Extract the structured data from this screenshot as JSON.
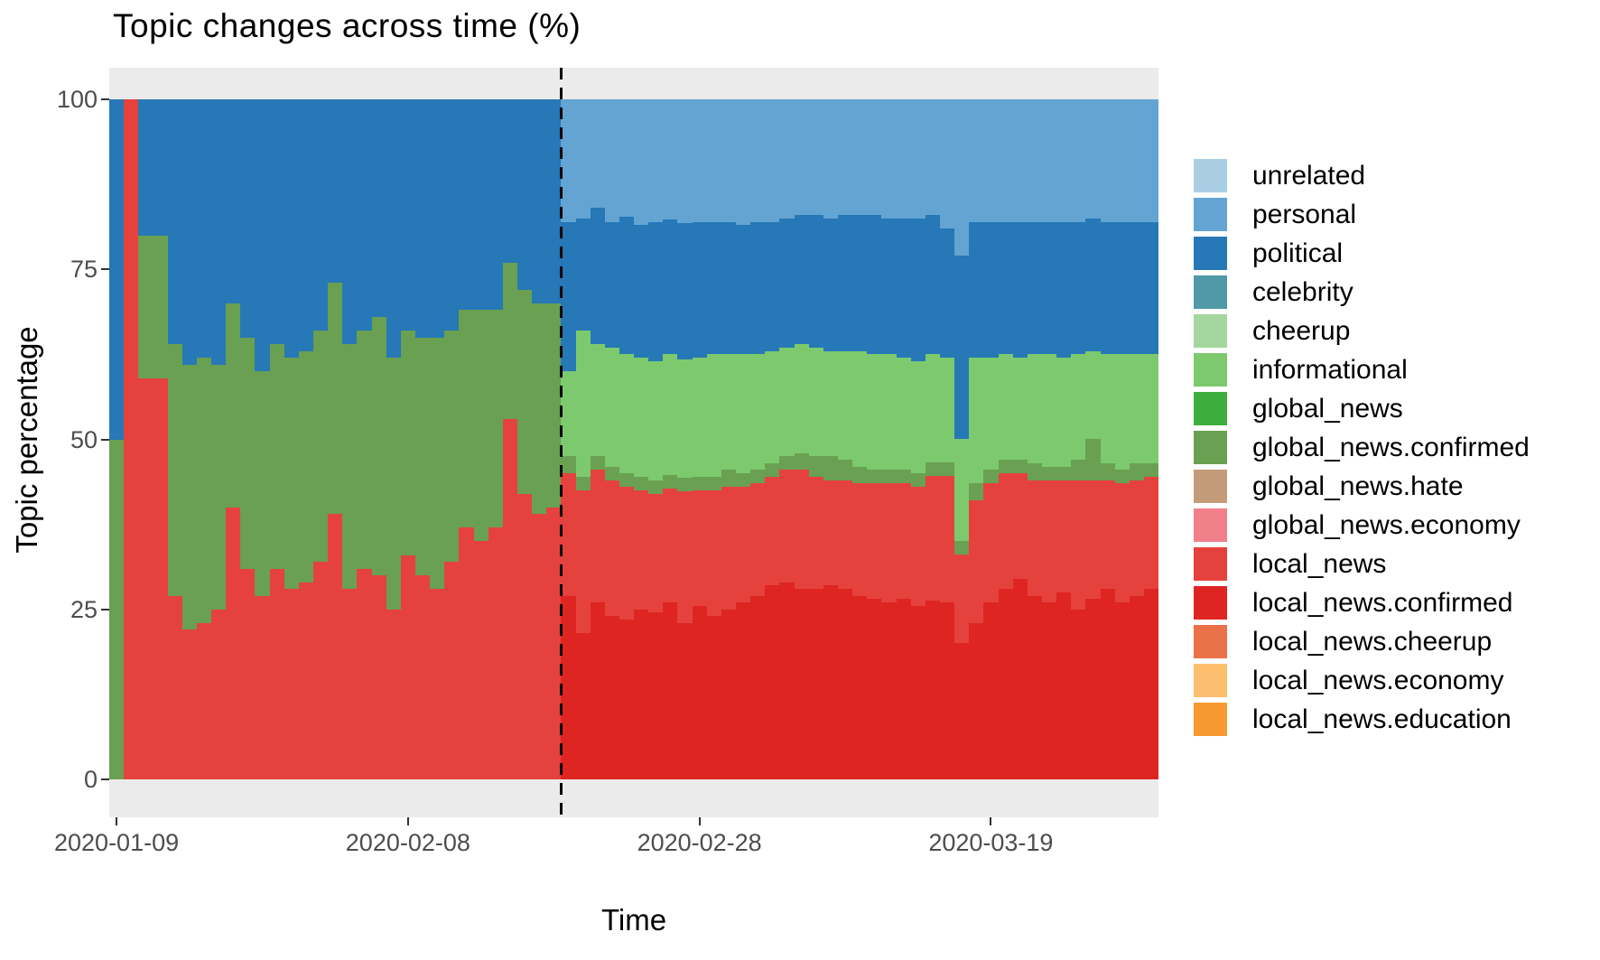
{
  "chart": {
    "title": "Topic changes across time (%)",
    "x_axis_title": "Time",
    "y_axis_title": "Topic percentage",
    "panel_bg": "#EBEBEB",
    "axis_text_color": "#4D4D4D"
  },
  "legend": {
    "items": [
      {
        "name": "unrelated",
        "color": "#A9CEE4"
      },
      {
        "name": "personal",
        "color": "#63A4D2"
      },
      {
        "name": "political",
        "color": "#2678B6"
      },
      {
        "name": "celebrity",
        "color": "#509AA8"
      },
      {
        "name": "cheerup",
        "color": "#A4D79E"
      },
      {
        "name": "informational",
        "color": "#7DCA6E"
      },
      {
        "name": "global_news",
        "color": "#3DAE3D"
      },
      {
        "name": "global_news.confirmed",
        "color": "#69A052"
      },
      {
        "name": "global_news.hate",
        "color": "#C49B78"
      },
      {
        "name": "global_news.economy",
        "color": "#F1808A"
      },
      {
        "name": "local_news",
        "color": "#E5423D"
      },
      {
        "name": "local_news.confirmed",
        "color": "#DE2522"
      },
      {
        "name": "local_news.cheerup",
        "color": "#EB7148"
      },
      {
        "name": "local_news.economy",
        "color": "#FDBE6E"
      },
      {
        "name": "local_news.education",
        "color": "#F8992F"
      }
    ]
  },
  "chart_data": {
    "type": "bar",
    "stacked": true,
    "unit": "percent of topics per day",
    "ylim": [
      0,
      100
    ],
    "y_ticks": [
      0,
      25,
      50,
      75,
      100
    ],
    "n_bars": 72,
    "x_ticks": [
      {
        "label": "2020-01-09",
        "bar_index": 0
      },
      {
        "label": "2020-02-08",
        "bar_index": 20
      },
      {
        "label": "2020-02-28",
        "bar_index": 40
      },
      {
        "label": "2020-03-19",
        "bar_index": 60
      }
    ],
    "vline_after_bar_index": 30,
    "grid": false,
    "legend_position": "right",
    "series": [
      {
        "name": "local_news.confirmed",
        "color": "#DE2522",
        "values": [
          0,
          0,
          0,
          0,
          0,
          0,
          0,
          0,
          0,
          0,
          0,
          0,
          0,
          0,
          0,
          0,
          0,
          0,
          0,
          0,
          0,
          0,
          0,
          0,
          0,
          0,
          0,
          0,
          0,
          0,
          0,
          27,
          21.5,
          26,
          24,
          23.5,
          25,
          24.5,
          26,
          23,
          25.5,
          24,
          25,
          26,
          27,
          28.5,
          29,
          28,
          28,
          28.5,
          28,
          27,
          26.5,
          26,
          26.5,
          25.5,
          26.3,
          26,
          20,
          23,
          26,
          28,
          29.5,
          27,
          26,
          27.5,
          25,
          26.5,
          28,
          26,
          27,
          28
        ]
      },
      {
        "name": "local_news",
        "color": "#E5423D",
        "values": [
          0,
          100,
          59,
          59,
          27,
          22,
          23,
          25,
          40,
          31,
          27,
          31,
          28,
          29,
          32,
          39,
          28,
          31,
          30,
          25,
          33,
          30,
          28,
          32,
          37,
          35,
          37,
          53,
          42,
          39,
          40,
          18,
          21,
          19.5,
          20,
          19.5,
          17.5,
          17.5,
          16.8,
          19.3,
          17,
          18.5,
          18,
          17,
          16.5,
          16,
          16.5,
          17.5,
          16.5,
          15.5,
          16,
          16.5,
          17,
          17.5,
          17,
          17.5,
          18.3,
          18.6,
          13,
          18,
          17.5,
          17,
          15.5,
          17,
          18,
          16.5,
          19,
          17.5,
          16,
          17.5,
          17,
          16.5
        ]
      },
      {
        "name": "global_news.confirmed",
        "color": "#69A052",
        "values": [
          50,
          0,
          21,
          21,
          37,
          39,
          39,
          36,
          30,
          34,
          33,
          33,
          34,
          34,
          34,
          34,
          36,
          35,
          38,
          37,
          33,
          35,
          37,
          34,
          32,
          34,
          32,
          23,
          30,
          31,
          30,
          2.5,
          2,
          2,
          2,
          2,
          2,
          2,
          2,
          2,
          2,
          2,
          2.5,
          2,
          2,
          2,
          2,
          2.5,
          3,
          3.5,
          3,
          2.5,
          2,
          2,
          2,
          2,
          2,
          2,
          2,
          2.5,
          2,
          2,
          2,
          2.5,
          2,
          2,
          3,
          6,
          2.5,
          2,
          2.5,
          2
        ]
      },
      {
        "name": "informational",
        "color": "#7DCA6E",
        "values": [
          0,
          0,
          0,
          0,
          0,
          0,
          0,
          0,
          0,
          0,
          0,
          0,
          0,
          0,
          0,
          0,
          0,
          0,
          0,
          0,
          0,
          0,
          0,
          0,
          0,
          0,
          0,
          0,
          0,
          0,
          0,
          12.5,
          21.5,
          16.5,
          17.5,
          17.5,
          17.5,
          17.5,
          17.7,
          17.5,
          17.5,
          18,
          17,
          17.5,
          17,
          16.5,
          16,
          16,
          16,
          15.5,
          16,
          17,
          17,
          17,
          16.5,
          16.5,
          16,
          15.4,
          15,
          18.5,
          16.5,
          15.5,
          15,
          16,
          16.5,
          16,
          15.5,
          13,
          16,
          17,
          16,
          16
        ]
      },
      {
        "name": "political",
        "color": "#2678B6",
        "values": [
          50,
          0,
          20,
          20,
          36,
          39,
          38,
          39,
          30,
          35,
          40,
          36,
          38,
          37,
          34,
          27,
          36,
          34,
          32,
          38,
          34,
          35,
          35,
          34,
          31,
          31,
          31,
          24,
          28,
          30,
          30,
          22,
          16.5,
          20,
          18.5,
          20.3,
          19.5,
          20.5,
          19.8,
          20,
          20,
          19.5,
          19.5,
          19,
          19.5,
          19,
          19,
          19,
          19.5,
          19.5,
          20,
          20,
          20.5,
          20,
          20.5,
          21,
          20.4,
          19,
          27,
          20,
          20,
          19.5,
          20,
          19.5,
          19.5,
          20,
          19.5,
          19.5,
          19.5,
          19.5,
          19.5,
          19.5
        ]
      },
      {
        "name": "personal",
        "color": "#63A4D2",
        "values": [
          0,
          0,
          0,
          0,
          0,
          0,
          0,
          0,
          0,
          0,
          0,
          0,
          0,
          0,
          0,
          0,
          0,
          0,
          0,
          0,
          0,
          0,
          0,
          0,
          0,
          0,
          0,
          0,
          0,
          0,
          0,
          18,
          17.5,
          16,
          18,
          17.2,
          18.5,
          18,
          17.7,
          18.2,
          18,
          18,
          18,
          18.5,
          18,
          18,
          17.5,
          17,
          17,
          17.5,
          17,
          17,
          17,
          17.5,
          17.5,
          17.5,
          17,
          19,
          23,
          18,
          18,
          18,
          18,
          18,
          18,
          18,
          18,
          17.5,
          18,
          18,
          18,
          18
        ]
      }
    ]
  }
}
